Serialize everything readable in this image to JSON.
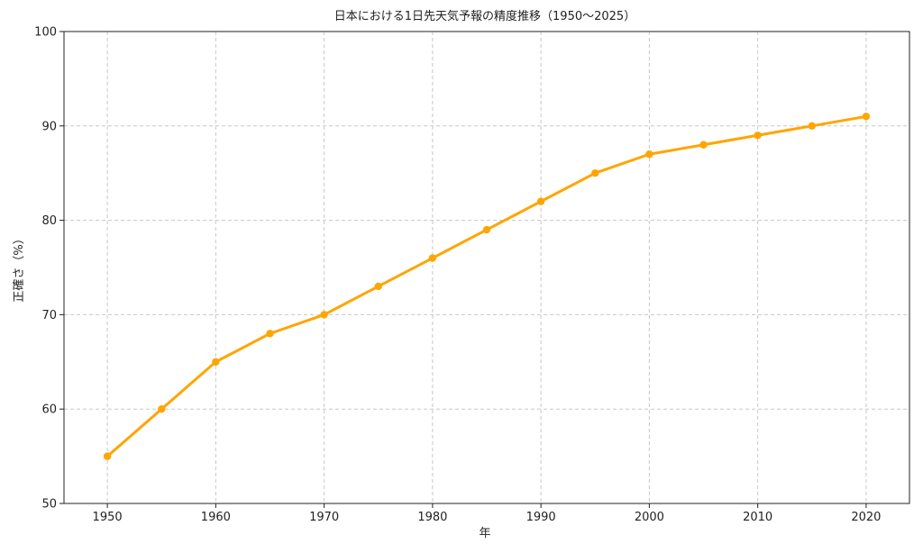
{
  "chart_data": {
    "type": "line",
    "title": "日本における1日先天気予報の精度推移（1950～2025）",
    "xlabel": "年",
    "ylabel": "正確さ（%）",
    "x": [
      1950,
      1955,
      1960,
      1965,
      1970,
      1975,
      1980,
      1985,
      1990,
      1995,
      2000,
      2005,
      2010,
      2015,
      2020
    ],
    "series": [
      {
        "values": [
          55,
          60,
          65,
          68,
          70,
          73,
          76,
          79,
          82,
          85,
          87,
          88,
          89,
          90,
          91
        ],
        "color": "#FFA500"
      }
    ],
    "xlim": [
      1946,
      2024
    ],
    "ylim": [
      50,
      100
    ],
    "xticks": [
      1950,
      1960,
      1970,
      1980,
      1990,
      2000,
      2010,
      2020
    ],
    "yticks": [
      50,
      60,
      70,
      80,
      90,
      100
    ],
    "grid": true,
    "marker": "circle"
  }
}
